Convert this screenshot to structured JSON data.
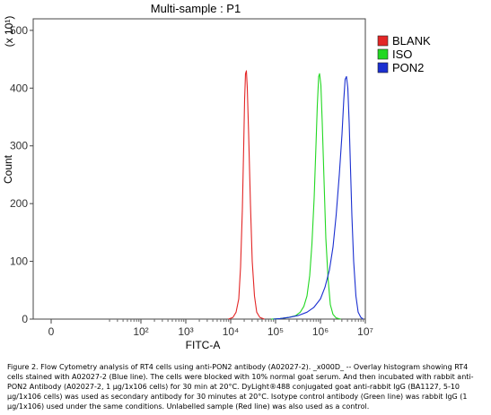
{
  "chart_data": {
    "type": "histogram",
    "title": "Multi-sample : P1",
    "xlabel": "FITC-A",
    "ylabel": "Count",
    "y_multiplier": "(x 10¹)",
    "x_scale": "biexponential",
    "xlim": [
      -0.4,
      7
    ],
    "ylim": [
      0,
      520
    ],
    "x_ticks": [
      {
        "value": 0,
        "label": "0"
      },
      {
        "value": 2,
        "label": "10²"
      },
      {
        "value": 3,
        "label": "10³"
      },
      {
        "value": 4,
        "label": "10⁴"
      },
      {
        "value": 5,
        "label": "10⁵"
      },
      {
        "value": 6,
        "label": "10⁶"
      },
      {
        "value": 7,
        "label": "10⁷"
      }
    ],
    "y_ticks": [
      0,
      100,
      200,
      300,
      400,
      500
    ],
    "legend": {
      "placement": "top-right",
      "entries": [
        {
          "name": "BLANK",
          "color": "#e32626"
        },
        {
          "name": "ISO",
          "color": "#22d822"
        },
        {
          "name": "PON2",
          "color": "#1a2fd0"
        }
      ]
    },
    "series": [
      {
        "name": "BLANK",
        "color": "#e32626",
        "points": [
          [
            3.95,
            0
          ],
          [
            4.05,
            3
          ],
          [
            4.12,
            12
          ],
          [
            4.18,
            35
          ],
          [
            4.22,
            90
          ],
          [
            4.26,
            190
          ],
          [
            4.29,
            300
          ],
          [
            4.31,
            380
          ],
          [
            4.33,
            425
          ],
          [
            4.35,
            430
          ],
          [
            4.37,
            400
          ],
          [
            4.4,
            320
          ],
          [
            4.44,
            200
          ],
          [
            4.48,
            100
          ],
          [
            4.53,
            40
          ],
          [
            4.58,
            12
          ],
          [
            4.65,
            3
          ],
          [
            4.75,
            0
          ]
        ]
      },
      {
        "name": "ISO",
        "color": "#22d822",
        "points": [
          [
            4.9,
            0
          ],
          [
            5.1,
            1
          ],
          [
            5.3,
            3
          ],
          [
            5.45,
            6
          ],
          [
            5.55,
            12
          ],
          [
            5.63,
            22
          ],
          [
            5.7,
            40
          ],
          [
            5.76,
            75
          ],
          [
            5.81,
            130
          ],
          [
            5.86,
            210
          ],
          [
            5.9,
            300
          ],
          [
            5.93,
            370
          ],
          [
            5.96,
            420
          ],
          [
            5.98,
            425
          ],
          [
            6.01,
            405
          ],
          [
            6.04,
            340
          ],
          [
            6.08,
            240
          ],
          [
            6.12,
            140
          ],
          [
            6.17,
            70
          ],
          [
            6.22,
            25
          ],
          [
            6.28,
            8
          ],
          [
            6.35,
            2
          ],
          [
            6.45,
            0
          ]
        ]
      },
      {
        "name": "PON2",
        "color": "#1a2fd0",
        "points": [
          [
            4.95,
            0
          ],
          [
            5.1,
            1
          ],
          [
            5.3,
            3
          ],
          [
            5.5,
            6
          ],
          [
            5.7,
            12
          ],
          [
            5.85,
            20
          ],
          [
            6.0,
            35
          ],
          [
            6.1,
            55
          ],
          [
            6.2,
            85
          ],
          [
            6.28,
            125
          ],
          [
            6.35,
            180
          ],
          [
            6.42,
            250
          ],
          [
            6.48,
            320
          ],
          [
            6.52,
            380
          ],
          [
            6.55,
            415
          ],
          [
            6.58,
            420
          ],
          [
            6.61,
            400
          ],
          [
            6.64,
            340
          ],
          [
            6.67,
            260
          ],
          [
            6.7,
            180
          ],
          [
            6.74,
            100
          ],
          [
            6.79,
            40
          ],
          [
            6.84,
            12
          ],
          [
            6.9,
            3
          ],
          [
            6.95,
            0
          ]
        ]
      }
    ]
  },
  "caption": "Figure 2. Flow Cytometry analysis of RT4 cells using anti-PON2 antibody (A02027-2). _x000D_ -- Overlay histogram showing RT4 cells stained with A02027-2 (Blue line). The cells were blocked with 10% normal goat serum. And then incubated with rabbit anti-PON2 Antibody (A02027-2, 1 μg/1x106 cells) for 30 min at 20°C. DyLight®488 conjugated goat anti-rabbit IgG (BA1127, 5-10 μg/1x106 cells) was used as secondary antibody for 30 minutes at 20°C. Isotype control antibody (Green line) was rabbit IgG (1 μg/1x106) used under the same conditions. Unlabelled sample (Red line) was also used as a control."
}
